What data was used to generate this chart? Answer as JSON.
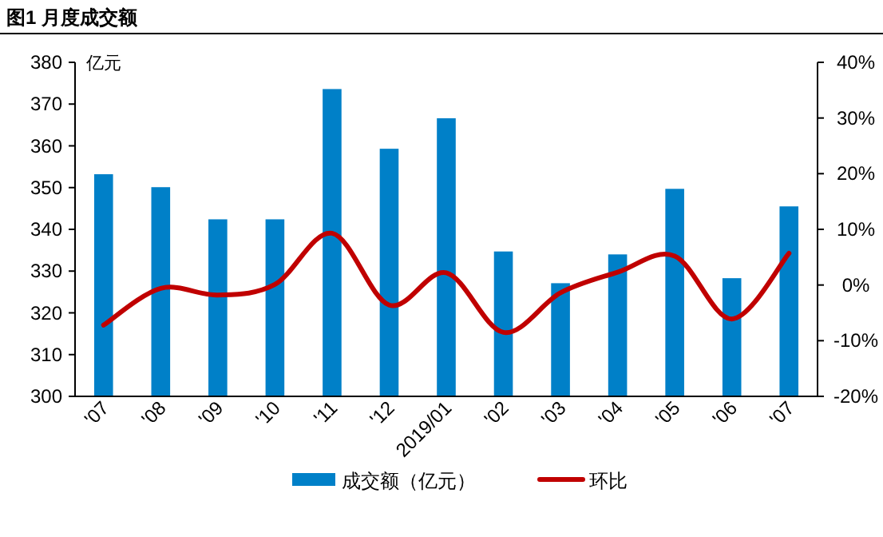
{
  "chart_data": {
    "type": "bar",
    "title": "图1  月度成交额",
    "ylabel": "亿元",
    "categories": [
      "'07",
      "'08",
      "'09",
      "'10",
      "'11",
      "'12",
      "2019/01",
      "'02",
      "'03",
      "'04",
      "'05",
      "'06",
      "'07"
    ],
    "series": [
      {
        "name": "成交额（亿元）",
        "color": "#0080c8",
        "values": [
          353.2,
          350.1,
          342.4,
          342.4,
          373.6,
          359.3,
          366.6,
          334.7,
          327.1,
          334.0,
          349.7,
          328.3,
          345.5
        ]
      },
      {
        "name": "环比",
        "type": "line",
        "axis": "y2",
        "color": "#c00000",
        "marker": "none",
        "line_style": "solid",
        "values": [
          -7.2,
          -0.6,
          -1.8,
          0.1,
          9.3,
          -3.6,
          2.2,
          -8.5,
          -1.4,
          2.3,
          5.2,
          -6.1,
          5.7
        ]
      }
    ],
    "ylim": [
      300,
      380
    ],
    "yticks": [
      300,
      310,
      320,
      330,
      340,
      350,
      360,
      370,
      380
    ],
    "y2lim": [
      -20,
      40
    ],
    "y2ticks": [
      {
        "value": -20,
        "label": "-20%"
      },
      {
        "value": -10,
        "label": "-10%"
      },
      {
        "value": 0,
        "label": "0%"
      },
      {
        "value": 10,
        "label": "10%"
      },
      {
        "value": 20,
        "label": "20%"
      },
      {
        "value": 30,
        "label": "30%"
      },
      {
        "value": 40,
        "label": "40%"
      }
    ],
    "legend": "bottom",
    "grid": false
  }
}
